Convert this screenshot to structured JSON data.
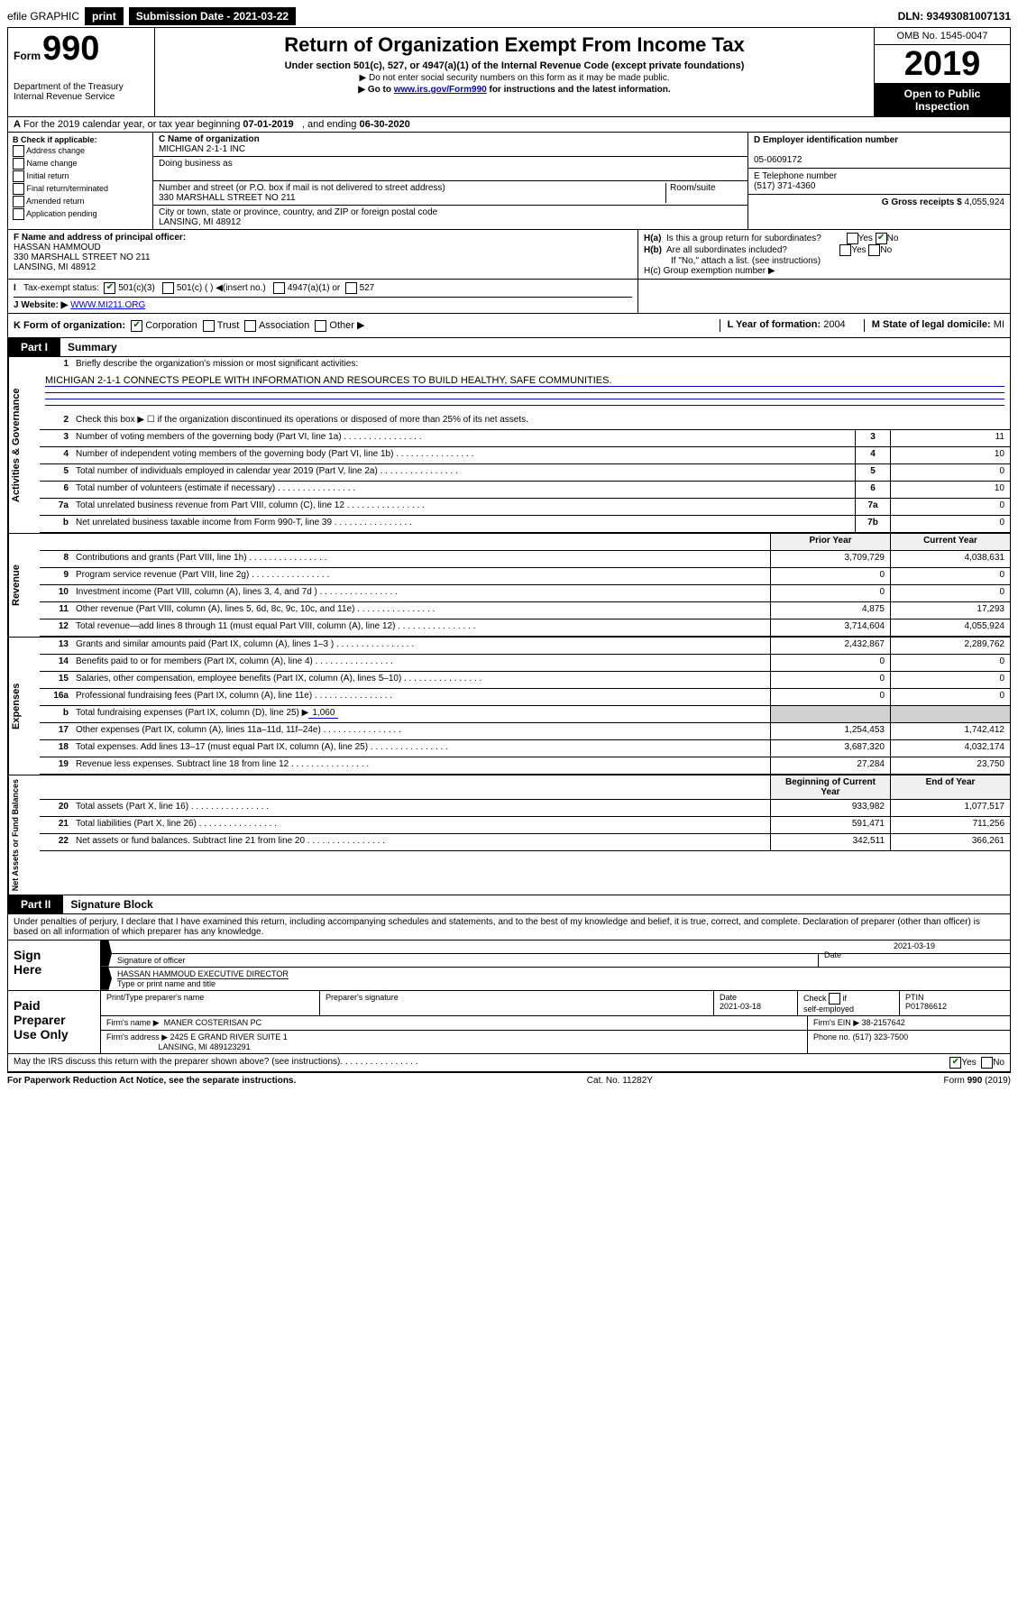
{
  "topbar": {
    "efile": "efile GRAPHIC",
    "print": "print",
    "subdate_label": "Submission Date - 2021-03-22",
    "dln": "DLN: 93493081007131"
  },
  "header": {
    "form_word": "Form",
    "form_num": "990",
    "dept": "Department of the Treasury\nInternal Revenue Service",
    "title": "Return of Organization Exempt From Income Tax",
    "subtitle": "Under section 501(c), 527, or 4947(a)(1) of the Internal Revenue Code (except private foundations)",
    "note1": "▶ Do not enter social security numbers on this form as it may be made public.",
    "note2_pre": "▶ Go to ",
    "note2_link": "www.irs.gov/Form990",
    "note2_post": " for instructions and the latest information.",
    "omb": "OMB No. 1545-0047",
    "year": "2019",
    "open": "Open to Public Inspection"
  },
  "row_a": "A For the 2019 calendar year, or tax year beginning 07-01-2019    , and ending 06-30-2020",
  "sec_b": {
    "label": "B Check if applicable:",
    "addr": "Address change",
    "name": "Name change",
    "init": "Initial return",
    "final": "Final return/terminated",
    "amend": "Amended return",
    "app": "Application pending"
  },
  "sec_c": {
    "name_label": "C Name of organization",
    "name": "MICHIGAN 2-1-1 INC",
    "dba_label": "Doing business as",
    "dba": "",
    "street_label": "Number and street (or P.O. box if mail is not delivered to street address)",
    "room_label": "Room/suite",
    "street": "330 MARSHALL STREET NO 211",
    "city_label": "City or town, state or province, country, and ZIP or foreign postal code",
    "city": "LANSING, MI  48912"
  },
  "sec_d": {
    "ein_label": "D Employer identification number",
    "ein": "05-0609172",
    "tel_label": "E Telephone number",
    "tel": "(517) 371-4360",
    "gross_label": "G Gross receipts $",
    "gross": "4,055,924"
  },
  "sec_f": {
    "label": "F  Name and address of principal officer:",
    "name": "HASSAN HAMMOUD",
    "addr1": "330 MARSHALL STREET NO 211",
    "addr2": "LANSING, MI  48912"
  },
  "sec_h": {
    "a": "H(a)  Is this a group return for subordinates?",
    "b": "H(b)  Are all subordinates included?",
    "b_note": "If \"No,\" attach a list. (see instructions)",
    "c": "H(c)  Group exemption number ▶"
  },
  "tax_status": {
    "label": "Tax-exempt status:",
    "c3": "501(c)(3)",
    "c": "501(c) (  ) ◀(insert no.)",
    "a1": "4947(a)(1) or",
    "s527": "527"
  },
  "row_j": {
    "label": "J Website: ▶ ",
    "url": "WWW.MI211.ORG"
  },
  "row_k": {
    "label": "K Form of organization:",
    "corp": "Corporation",
    "trust": "Trust",
    "assoc": "Association",
    "other": "Other ▶",
    "l": "L Year of formation: ",
    "l_val": "2004",
    "m": "M State of legal domicile: ",
    "m_val": "MI"
  },
  "part1": {
    "tab": "Part I",
    "title": "Summary",
    "mission_label": "Briefly describe the organization's mission or most significant activities:",
    "mission": "MICHIGAN 2-1-1 CONNECTS PEOPLE WITH INFORMATION AND RESOURCES TO BUILD HEALTHY, SAFE COMMUNITIES.",
    "line2": "Check this box ▶ ☐  if the organization discontinued its operations or disposed of more than 25% of its net assets.",
    "prior": "Prior Year",
    "current": "Current Year",
    "begin": "Beginning of Current Year",
    "end": "End of Year",
    "vlab1": "Activities & Governance",
    "vlab2": "Revenue",
    "vlab3": "Expenses",
    "vlab4": "Net Assets or Fund Balances",
    "rows_top": [
      {
        "n": "3",
        "t": "Number of voting members of the governing body (Part VI, line 1a)",
        "c": "3",
        "v": "11"
      },
      {
        "n": "4",
        "t": "Number of independent voting members of the governing body (Part VI, line 1b)",
        "c": "4",
        "v": "10"
      },
      {
        "n": "5",
        "t": "Total number of individuals employed in calendar year 2019 (Part V, line 2a)",
        "c": "5",
        "v": "0"
      },
      {
        "n": "6",
        "t": "Total number of volunteers (estimate if necessary)",
        "c": "6",
        "v": "10"
      },
      {
        "n": "7a",
        "t": "Total unrelated business revenue from Part VIII, column (C), line 12",
        "c": "7a",
        "v": "0"
      },
      {
        "n": "b",
        "t": "Net unrelated business taxable income from Form 990-T, line 39",
        "c": "7b",
        "v": "0"
      }
    ],
    "rows_rev": [
      {
        "n": "8",
        "t": "Contributions and grants (Part VIII, line 1h)",
        "p": "3,709,729",
        "c": "4,038,631"
      },
      {
        "n": "9",
        "t": "Program service revenue (Part VIII, line 2g)",
        "p": "0",
        "c": "0"
      },
      {
        "n": "10",
        "t": "Investment income (Part VIII, column (A), lines 3, 4, and 7d )",
        "p": "0",
        "c": "0"
      },
      {
        "n": "11",
        "t": "Other revenue (Part VIII, column (A), lines 5, 6d, 8c, 9c, 10c, and 11e)",
        "p": "4,875",
        "c": "17,293"
      },
      {
        "n": "12",
        "t": "Total revenue—add lines 8 through 11 (must equal Part VIII, column (A), line 12)",
        "p": "3,714,604",
        "c": "4,055,924"
      }
    ],
    "rows_exp": [
      {
        "n": "13",
        "t": "Grants and similar amounts paid (Part IX, column (A), lines 1–3 )",
        "p": "2,432,867",
        "c": "2,289,762"
      },
      {
        "n": "14",
        "t": "Benefits paid to or for members (Part IX, column (A), line 4)",
        "p": "0",
        "c": "0"
      },
      {
        "n": "15",
        "t": "Salaries, other compensation, employee benefits (Part IX, column (A), lines 5–10)",
        "p": "0",
        "c": "0"
      },
      {
        "n": "16a",
        "t": "Professional fundraising fees (Part IX, column (A), line 11e)",
        "p": "0",
        "c": "0"
      }
    ],
    "row16b": {
      "n": "b",
      "t": "Total fundraising expenses (Part IX, column (D), line 25) ▶",
      "v": "1,060"
    },
    "rows_exp2": [
      {
        "n": "17",
        "t": "Other expenses (Part IX, column (A), lines 11a–11d, 11f–24e)",
        "p": "1,254,453",
        "c": "1,742,412"
      },
      {
        "n": "18",
        "t": "Total expenses. Add lines 13–17 (must equal Part IX, column (A), line 25)",
        "p": "3,687,320",
        "c": "4,032,174"
      },
      {
        "n": "19",
        "t": "Revenue less expenses. Subtract line 18 from line 12",
        "p": "27,284",
        "c": "23,750"
      }
    ],
    "rows_net": [
      {
        "n": "20",
        "t": "Total assets (Part X, line 16)",
        "p": "933,982",
        "c": "1,077,517"
      },
      {
        "n": "21",
        "t": "Total liabilities (Part X, line 26)",
        "p": "591,471",
        "c": "711,256"
      },
      {
        "n": "22",
        "t": "Net assets or fund balances. Subtract line 21 from line 20",
        "p": "342,511",
        "c": "366,261"
      }
    ]
  },
  "part2": {
    "tab": "Part II",
    "title": "Signature Block",
    "declaration": "Under penalties of perjury, I declare that I have examined this return, including accompanying schedules and statements, and to the best of my knowledge and belief, it is true, correct, and complete. Decldeclalready of preparer (other than officer) is based on all information of which preparer has any knowledge."
  },
  "sign": {
    "left": "Sign Here",
    "sig_officer": "Signature of officer",
    "date": "2021-03-19",
    "date_label": "Date",
    "name": "HASSAN HAMMOUD  EXECUTIVE DIRECTOR",
    "name_label": "Type or print name and title"
  },
  "paid": {
    "left": "Paid Preparer Use Only",
    "h1": "Print/Type preparer's name",
    "h2": "Preparer's signature",
    "h3_label": "Date",
    "h3": "2021-03-18",
    "h4": "Check ☐ if self-employed",
    "h5_label": "PTIN",
    "h5": "P01786612",
    "firm_label": "Firm's name    ▶",
    "firm": "MANER COSTERISAN PC",
    "ein_label": "Firm's EIN ▶",
    "ein": "38-2157642",
    "addr_label": "Firm's address ▶",
    "addr": "2425 E GRAND RIVER SUITE 1",
    "addr2": "LANSING, MI  489123291",
    "phone_label": "Phone no.",
    "phone": "(517) 323-7500"
  },
  "discuss": "May the IRS discuss this return with the preparer shown above? (see instructions)",
  "footer": {
    "left": "For Paperwork Reduction Act Notice, see the separate instructions.",
    "mid": "Cat. No. 11282Y",
    "right": "Form 990 (2019)"
  }
}
